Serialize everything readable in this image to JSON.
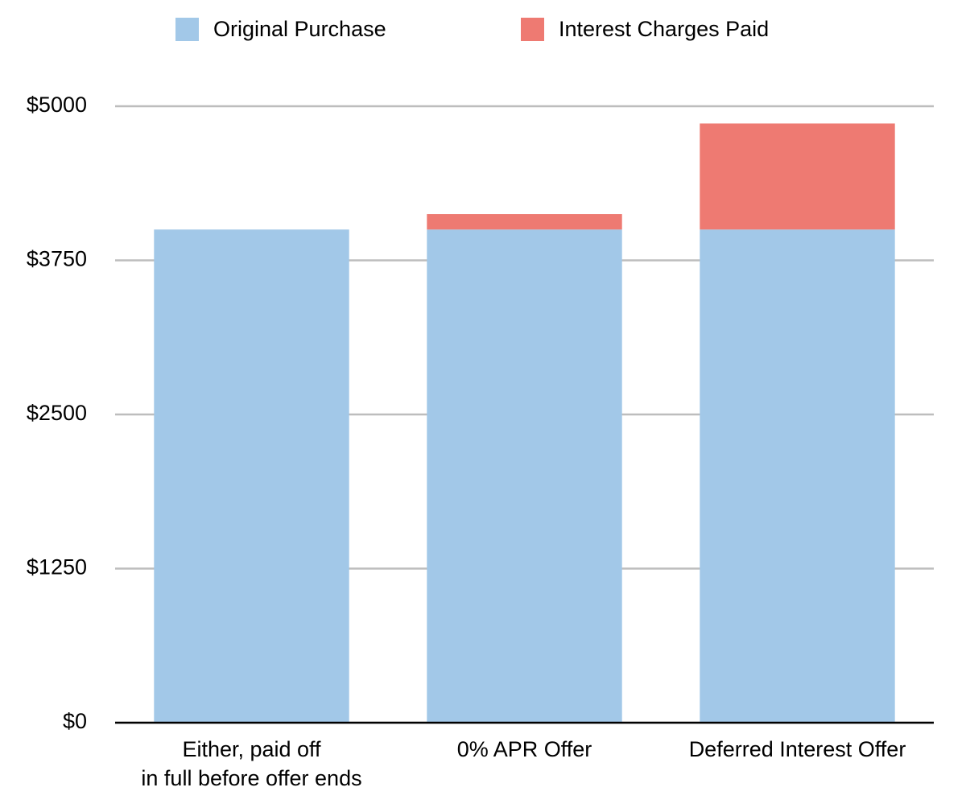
{
  "chart_data": {
    "type": "stacked-bar",
    "categories": [
      "Either, paid off\nin full before offer ends",
      "0% APR Offer",
      "Deferred Interest Offer"
    ],
    "series": [
      {
        "name": "Original Purchase",
        "color": "#a2c8e8",
        "values": [
          4000,
          4000,
          4000
        ]
      },
      {
        "name": "Interest Charges Paid",
        "color": "#ee7a72",
        "values": [
          0,
          125,
          860
        ]
      }
    ],
    "ylim": [
      0,
      5000
    ],
    "yticks": [
      {
        "value": 0,
        "label": "$0"
      },
      {
        "value": 1250,
        "label": "$1250"
      },
      {
        "value": 2500,
        "label": "$2500"
      },
      {
        "value": 3750,
        "label": "$3750"
      },
      {
        "value": 5000,
        "label": "$5000"
      }
    ],
    "grid": true
  }
}
